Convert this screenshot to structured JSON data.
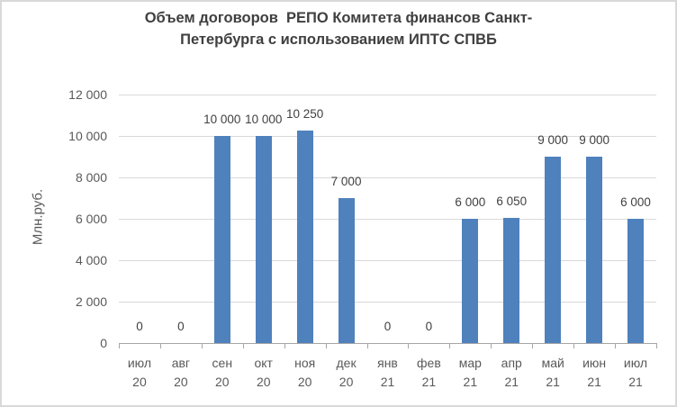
{
  "chart_data": {
    "type": "bar",
    "title": "Объем договоров  РЕПО Комитета финансов Санкт-Петербурга с использованием ИПТС СПВБ",
    "title_lines": [
      "Объем договоров  РЕПО Комитета финансов Санкт-",
      "Петербурга с использованием ИПТС СПВБ"
    ],
    "ylabel": "Млн.руб.",
    "xlabel": "",
    "ylim": [
      0,
      12000
    ],
    "ytick_step": 2000,
    "ytick_labels": [
      "0",
      "2 000",
      "4 000",
      "6 000",
      "8 000",
      "10 000",
      "12 000"
    ],
    "grid": true,
    "legend": false,
    "categories": [
      "июл 20",
      "авг 20",
      "сен 20",
      "окт 20",
      "ноя 20",
      "дек 20",
      "янв 21",
      "фев 21",
      "мар 21",
      "апр 21",
      "май 21",
      "июн 21",
      "июл 21"
    ],
    "category_lines": [
      [
        "июл",
        "20"
      ],
      [
        "авг",
        "20"
      ],
      [
        "сен",
        "20"
      ],
      [
        "окт",
        "20"
      ],
      [
        "ноя",
        "20"
      ],
      [
        "дек",
        "20"
      ],
      [
        "янв",
        "21"
      ],
      [
        "фев",
        "21"
      ],
      [
        "мар",
        "21"
      ],
      [
        "апр",
        "21"
      ],
      [
        "май",
        "21"
      ],
      [
        "июн",
        "21"
      ],
      [
        "июл",
        "21"
      ]
    ],
    "values": [
      0,
      0,
      10000,
      10000,
      10250,
      7000,
      0,
      0,
      6000,
      6050,
      9000,
      9000,
      6000
    ],
    "value_labels": [
      "0",
      "0",
      "10 000",
      "10 000",
      "10 250",
      "7 000",
      "0",
      "0",
      "6 000",
      "6 050",
      "9 000",
      "9 000",
      "6 000"
    ]
  },
  "colors": {
    "bar": "#4F81BD",
    "gridline": "#D9D9D9",
    "axis_line": "#A6A6A6",
    "tick_text": "#595959",
    "data_label_text": "#404040",
    "title_text": "#3F3F3F",
    "chart_border": "#D9D9D9",
    "background": "#FFFFFF"
  }
}
